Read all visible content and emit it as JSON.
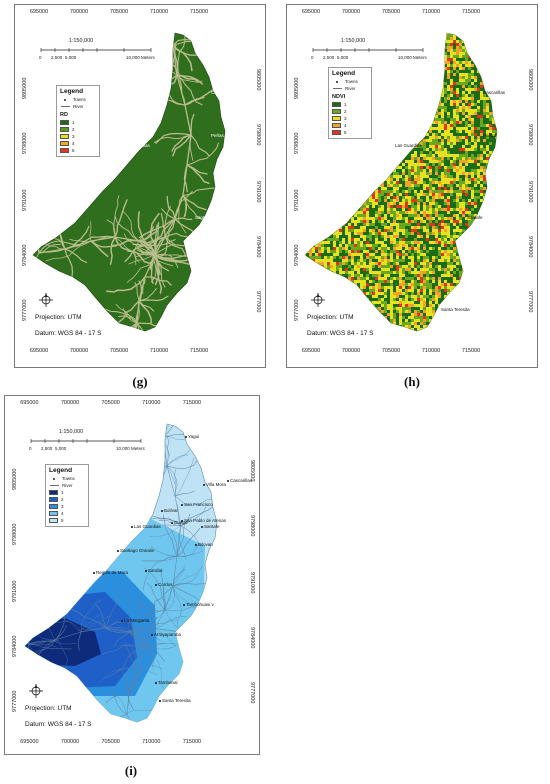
{
  "captions": {
    "g": "(g)",
    "h": "(h)",
    "i": "(i)"
  },
  "axes": {
    "x_ticks": [
      "695000",
      "700000",
      "705000",
      "710000",
      "715000"
    ],
    "y_ticks": [
      "9805000",
      "9798000",
      "9791000",
      "9784000",
      "9777000"
    ]
  },
  "scale_bar": {
    "ratio": "1:150,000",
    "labels": [
      "0",
      "2,500",
      "5,000",
      "10,000 Meters"
    ]
  },
  "projection": "Projection: UTM",
  "datum": "Datum: WGS 84 - 17 S",
  "legend": {
    "title": "Legend",
    "towns": "Towns",
    "river": "River"
  },
  "panel_g": {
    "class_title": "RD",
    "classes": [
      {
        "label": "1",
        "color": "#1f6b14"
      },
      {
        "label": "2",
        "color": "#5a9a1c"
      },
      {
        "label": "3",
        "color": "#e7e01e"
      },
      {
        "label": "4",
        "color": "#f3a52a"
      },
      {
        "label": "5",
        "color": "#e8341b"
      }
    ],
    "fill_color": "#2f6e1c",
    "river_color": "#b9bc8c"
  },
  "panel_h": {
    "class_title": "NDVI",
    "classes": [
      {
        "label": "1",
        "color": "#1e6b16"
      },
      {
        "label": "2",
        "color": "#6aa821"
      },
      {
        "label": "3",
        "color": "#e6e21f"
      },
      {
        "label": "4",
        "color": "#f2a12a"
      },
      {
        "label": "5",
        "color": "#e8331c"
      }
    ]
  },
  "panel_i": {
    "classes": [
      {
        "label": "1",
        "color": "#0d2b7a"
      },
      {
        "label": "2",
        "color": "#1f5fc8"
      },
      {
        "label": "3",
        "color": "#2b8fe0"
      },
      {
        "label": "4",
        "color": "#6fc6ee"
      },
      {
        "label": "5",
        "color": "#bfe3f5"
      }
    ],
    "towns": [
      "Yagui",
      "Villa Mora",
      "Cascarillas",
      "San Francisco",
      "Bolívar",
      "San Pablo de Atenas",
      "Las Guardias",
      "Guapo",
      "Santafe",
      "Santiago Grande",
      "Bilovan",
      "Regulo de Mora",
      "Sandal",
      "Cordos",
      "Tambohuasi v",
      "La Margarita",
      "Arrayapamba",
      "Tambanal",
      "Santa Teresita"
    ]
  },
  "panels_g_h_towns": [
    "Cascarillas",
    "Peñas",
    "Las Guardias",
    "Santafe",
    "Santa Teresita"
  ]
}
